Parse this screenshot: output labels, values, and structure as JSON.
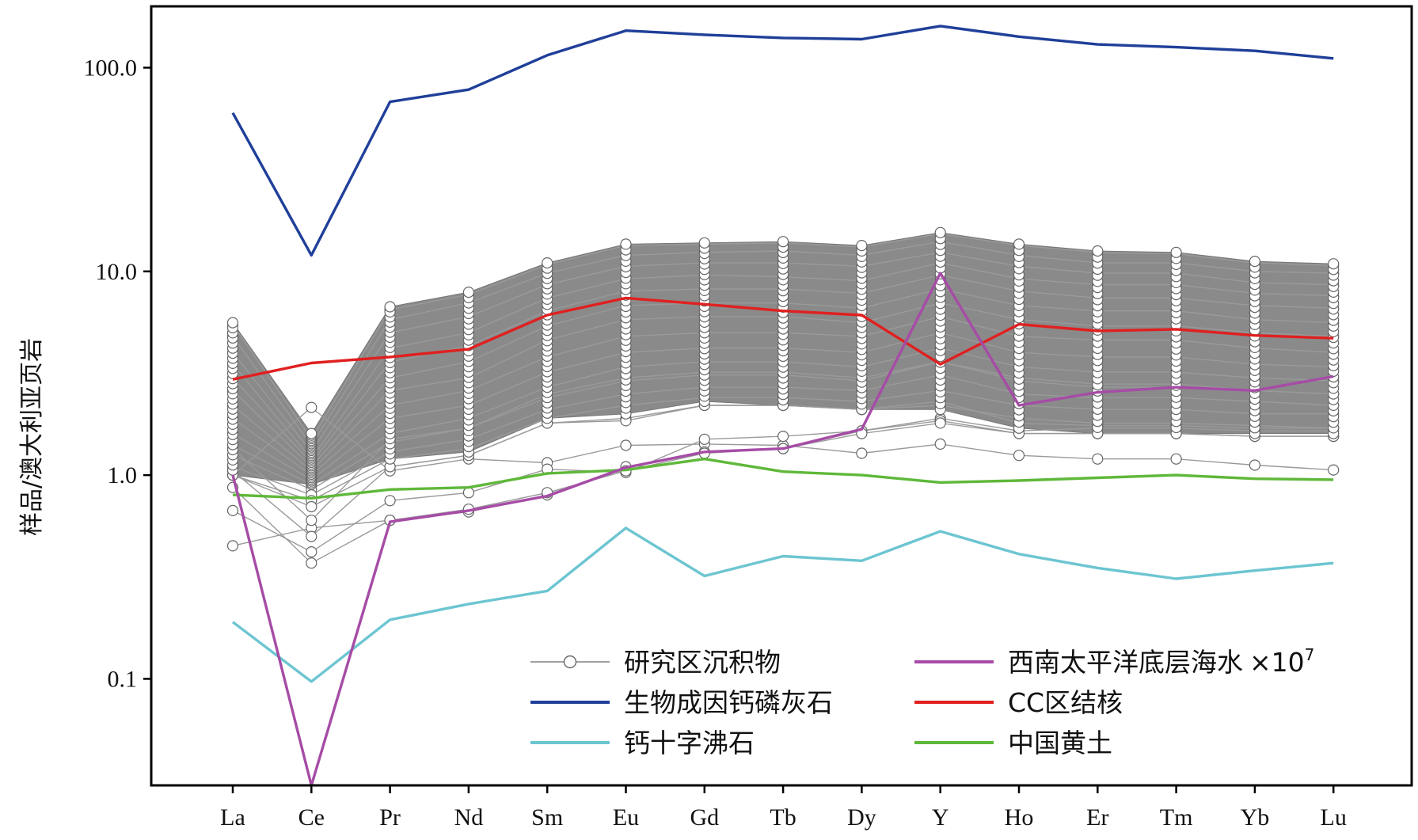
{
  "chart_data": {
    "type": "line",
    "title": "",
    "xlabel": "",
    "ylabel": "样品/澳大利亚页岩",
    "y_scale": "log",
    "ylim": [
      0.03,
      200
    ],
    "y_ticks": [
      {
        "value": 0.1,
        "label": "0.1"
      },
      {
        "value": 1,
        "label": "1.0"
      },
      {
        "value": 10,
        "label": "10.0"
      },
      {
        "value": 100,
        "label": "100.0"
      }
    ],
    "categories": [
      "La",
      "Ce",
      "Pr",
      "Nd",
      "Sm",
      "Eu",
      "Gd",
      "Tb",
      "Dy",
      "Y",
      "Ho",
      "Er",
      "Tm",
      "Yb",
      "Lu"
    ],
    "grid": false,
    "legend_position": "bottom-right",
    "sample_envelope": {
      "name": "研究区沉积物",
      "color": "#808080",
      "upper": [
        5.6,
        1.6,
        6.7,
        7.9,
        11.0,
        13.6,
        13.8,
        14.0,
        13.4,
        15.5,
        13.6,
        12.6,
        12.4,
        11.2,
        10.9
      ],
      "lower": [
        1.0,
        0.9,
        1.2,
        1.3,
        1.9,
        2.0,
        2.3,
        2.2,
        2.1,
        2.1,
        1.7,
        1.6,
        1.6,
        1.6,
        1.6
      ]
    },
    "sample_lines": [
      [
        5.5,
        1.5,
        6.5,
        7.7,
        10.8,
        13.4,
        13.6,
        13.8,
        13.2,
        15.3,
        13.4,
        12.4,
        12.2,
        11.0,
        10.7
      ],
      [
        4.8,
        1.4,
        5.8,
        7.0,
        9.8,
        12.0,
        12.4,
        12.6,
        12.0,
        14.0,
        12.0,
        11.0,
        11.0,
        10.0,
        9.8
      ],
      [
        4.0,
        1.3,
        5.0,
        6.0,
        8.6,
        10.6,
        11.0,
        11.0,
        10.6,
        12.4,
        10.6,
        9.8,
        9.8,
        8.8,
        8.6
      ],
      [
        3.5,
        1.2,
        4.2,
        5.0,
        7.4,
        9.2,
        9.6,
        9.4,
        9.0,
        11.0,
        9.2,
        8.6,
        8.6,
        7.8,
        7.6
      ],
      [
        3.0,
        1.15,
        3.6,
        4.3,
        6.4,
        8.0,
        8.2,
        8.2,
        7.8,
        9.6,
        8.0,
        7.4,
        7.4,
        6.8,
        6.6
      ],
      [
        2.6,
        1.1,
        3.0,
        3.6,
        5.4,
        6.8,
        7.0,
        7.0,
        6.6,
        8.2,
        6.8,
        6.4,
        6.4,
        5.8,
        5.6
      ],
      [
        2.2,
        1.05,
        2.6,
        3.0,
        4.6,
        5.8,
        6.0,
        6.0,
        5.6,
        7.0,
        5.8,
        5.4,
        5.4,
        5.0,
        4.8
      ],
      [
        1.9,
        1.0,
        2.2,
        2.6,
        3.8,
        4.8,
        5.0,
        5.0,
        4.8,
        6.0,
        4.8,
        4.6,
        4.6,
        4.2,
        4.0
      ],
      [
        1.6,
        0.95,
        1.9,
        2.2,
        3.2,
        4.0,
        4.2,
        4.2,
        4.0,
        5.0,
        4.0,
        3.8,
        3.8,
        3.5,
        3.4
      ],
      [
        1.4,
        0.9,
        1.6,
        1.9,
        2.7,
        3.4,
        3.6,
        3.6,
        3.4,
        4.2,
        3.4,
        3.2,
        3.2,
        3.0,
        2.9
      ],
      [
        1.25,
        0.85,
        1.45,
        1.7,
        2.4,
        2.9,
        3.1,
        3.1,
        2.9,
        3.6,
        2.9,
        2.7,
        2.7,
        2.6,
        2.5
      ],
      [
        1.1,
        0.8,
        1.3,
        1.5,
        2.1,
        2.5,
        2.7,
        2.7,
        2.6,
        3.1,
        2.5,
        2.4,
        2.4,
        2.3,
        2.2
      ],
      [
        1.0,
        0.75,
        1.2,
        1.35,
        1.9,
        2.2,
        2.4,
        2.4,
        2.3,
        2.6,
        2.2,
        2.1,
        2.1,
        2.0,
        2.0
      ],
      [
        1.0,
        0.7,
        1.1,
        1.25,
        1.8,
        1.9,
        2.2,
        2.2,
        2.1,
        2.3,
        1.8,
        1.75,
        1.75,
        1.7,
        1.7
      ],
      [
        1.0,
        2.15,
        1.05,
        1.2,
        1.15,
        1.4,
        1.42,
        1.4,
        1.28,
        1.42,
        1.25,
        1.2,
        1.2,
        1.12,
        1.06
      ],
      [
        0.67,
        0.42,
        0.75,
        0.82,
        1.07,
        1.03,
        1.5,
        1.55,
        1.65,
        1.9,
        1.65,
        1.7,
        1.7,
        1.65,
        1.65
      ],
      [
        0.45,
        0.55,
        0.6,
        0.66,
        0.8,
        1.1,
        1.3,
        1.35,
        1.65,
        1.85,
        1.6,
        1.6,
        1.6,
        1.55,
        1.55
      ],
      [
        0.87,
        0.37,
        0.6,
        0.68,
        0.82,
        1.05,
        1.28,
        1.35,
        1.6,
        1.8,
        1.6,
        1.6,
        1.6,
        1.55,
        1.55
      ],
      [
        1.05,
        0.5,
        1.1,
        1.25,
        1.8,
        1.85,
        2.2,
        2.2,
        2.1,
        2.2,
        1.9,
        1.8,
        1.8,
        1.75,
        1.7
      ],
      [
        1.35,
        0.6,
        1.5,
        1.7,
        2.5,
        3.0,
        3.2,
        3.2,
        3.0,
        3.6,
        3.0,
        2.8,
        2.8,
        2.6,
        2.5
      ]
    ],
    "series": [
      {
        "name": "生物成因钙磷灰石",
        "color": "#1f3f99",
        "values": [
          60,
          12,
          68,
          78,
          115,
          152,
          145,
          140,
          138,
          160,
          142,
          130,
          126,
          121,
          111
        ]
      },
      {
        "name": "钙十字沸石",
        "color": "#6cc5d1",
        "values": [
          0.19,
          0.097,
          0.195,
          0.233,
          0.27,
          0.55,
          0.32,
          0.4,
          0.38,
          0.53,
          0.41,
          0.35,
          0.31,
          0.34,
          0.37
        ]
      },
      {
        "name": "西南太平洋底层海水×10⁷",
        "color": "#a64ca6",
        "values": [
          1.0,
          0.03,
          0.59,
          0.67,
          0.79,
          1.09,
          1.3,
          1.35,
          1.68,
          9.8,
          2.2,
          2.55,
          2.7,
          2.6,
          3.05
        ]
      },
      {
        "name": "CC区结核",
        "color": "#e02020",
        "values": [
          2.95,
          3.55,
          3.8,
          4.15,
          6.1,
          7.4,
          6.9,
          6.4,
          6.1,
          3.5,
          5.5,
          5.1,
          5.2,
          4.85,
          4.7
        ]
      },
      {
        "name": "中国黄土",
        "color": "#5fb83a",
        "values": [
          0.8,
          0.77,
          0.85,
          0.87,
          1.02,
          1.06,
          1.2,
          1.04,
          1.0,
          0.92,
          0.94,
          0.97,
          1.0,
          0.96,
          0.95
        ]
      }
    ],
    "legend": [
      {
        "label": "研究区沉积物",
        "color": "#808080",
        "marker": "circle"
      },
      {
        "label": "西南太平洋底层海水",
        "suffix": "×10",
        "sup": "7",
        "color": "#a64ca6",
        "marker": "none"
      },
      {
        "label": "生物成因钙磷灰石",
        "color": "#1f3f99",
        "marker": "none"
      },
      {
        "label": "CC区结核",
        "color": "#e02020",
        "marker": "none"
      },
      {
        "label": "钙十字沸石",
        "color": "#6cc5d1",
        "marker": "none"
      },
      {
        "label": "中国黄土",
        "color": "#5fb83a",
        "marker": "none"
      }
    ]
  }
}
